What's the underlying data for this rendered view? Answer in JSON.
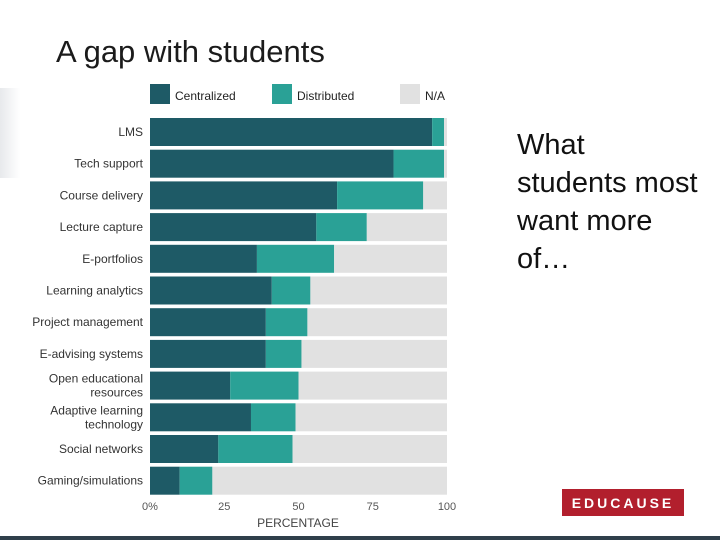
{
  "slide": {
    "title": "A gap with students",
    "side_text": "What students most want more of…",
    "logo_text": "EDUCAUSE"
  },
  "chart_data": {
    "type": "bar",
    "orientation": "horizontal",
    "stacked": true,
    "title": "",
    "xlabel": "PERCENTAGE",
    "ylabel": "",
    "xlim": [
      0,
      100
    ],
    "x_ticks": [
      "0%",
      "25",
      "50",
      "75",
      "100"
    ],
    "legend_position": "top",
    "categories": [
      "LMS",
      "Tech support",
      "Course delivery",
      "Lecture capture",
      "E-portfolios",
      "Learning analytics",
      "Project management",
      "E-advising systems",
      "Open educational resources",
      "Adaptive learning technology",
      "Social networks",
      "Gaming/simulations"
    ],
    "category_lines": [
      [
        "LMS"
      ],
      [
        "Tech support"
      ],
      [
        "Course delivery"
      ],
      [
        "Lecture capture"
      ],
      [
        "E-portfolios"
      ],
      [
        "Learning analytics"
      ],
      [
        "Project management"
      ],
      [
        "E-advising systems"
      ],
      [
        "Open educational",
        "resources"
      ],
      [
        "Adaptive learning",
        "technology"
      ],
      [
        "Social networks"
      ],
      [
        "Gaming/simulations"
      ]
    ],
    "series": [
      {
        "name": "Centralized",
        "color": "#1e5a66",
        "values": [
          95,
          82,
          63,
          56,
          36,
          41,
          39,
          39,
          27,
          34,
          23,
          10
        ]
      },
      {
        "name": "Distributed",
        "color": "#2aa196",
        "values": [
          4,
          17,
          29,
          17,
          26,
          13,
          14,
          12,
          23,
          15,
          25,
          11
        ]
      },
      {
        "name": "N/A",
        "color": "#e1e1e1",
        "values": [
          1,
          1,
          8,
          27,
          38,
          46,
          47,
          49,
          50,
          51,
          52,
          79
        ]
      }
    ]
  }
}
